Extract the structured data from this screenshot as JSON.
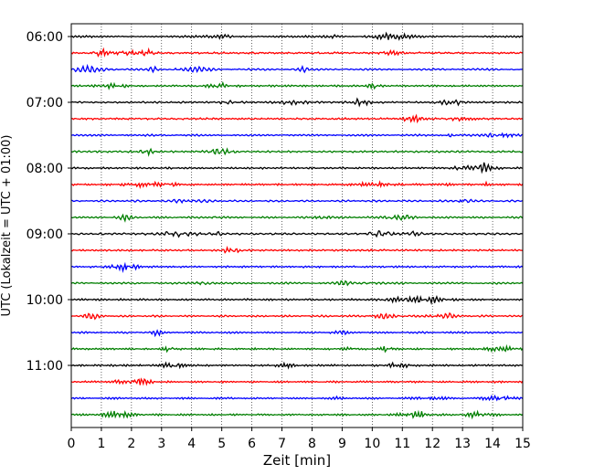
{
  "chart_data": {
    "type": "line",
    "title": "",
    "xlabel": "Zeit  [min]",
    "ylabel": "UTC (Lokalzeit = UTC + 01:00)",
    "xlim": [
      0,
      15
    ],
    "x_ticks": [
      0,
      1,
      2,
      3,
      4,
      5,
      6,
      7,
      8,
      9,
      10,
      11,
      12,
      13,
      14,
      15
    ],
    "x_tick_labels": [
      "0",
      "1",
      "2",
      "3",
      "4",
      "5",
      "6",
      "7",
      "8",
      "9",
      "10",
      "11",
      "12",
      "13",
      "14",
      "15"
    ],
    "y_tick_labels": [
      "06:00",
      "07:00",
      "08:00",
      "09:00",
      "10:00",
      "11:00"
    ],
    "traces_per_hour": 4,
    "trace_interval_min": 15,
    "trace_start_times": [
      "06:00",
      "06:15",
      "06:30",
      "06:45",
      "07:00",
      "07:15",
      "07:30",
      "07:45",
      "08:00",
      "08:15",
      "08:30",
      "08:45",
      "09:00",
      "09:15",
      "09:30",
      "09:45",
      "10:00",
      "10:15",
      "10:30",
      "10:45",
      "11:00",
      "11:15",
      "11:30",
      "11:45"
    ],
    "trace_colors": [
      "#000000",
      "#ff0000",
      "#0000ff",
      "#007f00"
    ],
    "grid": "vertical dotted",
    "legend": "none"
  }
}
